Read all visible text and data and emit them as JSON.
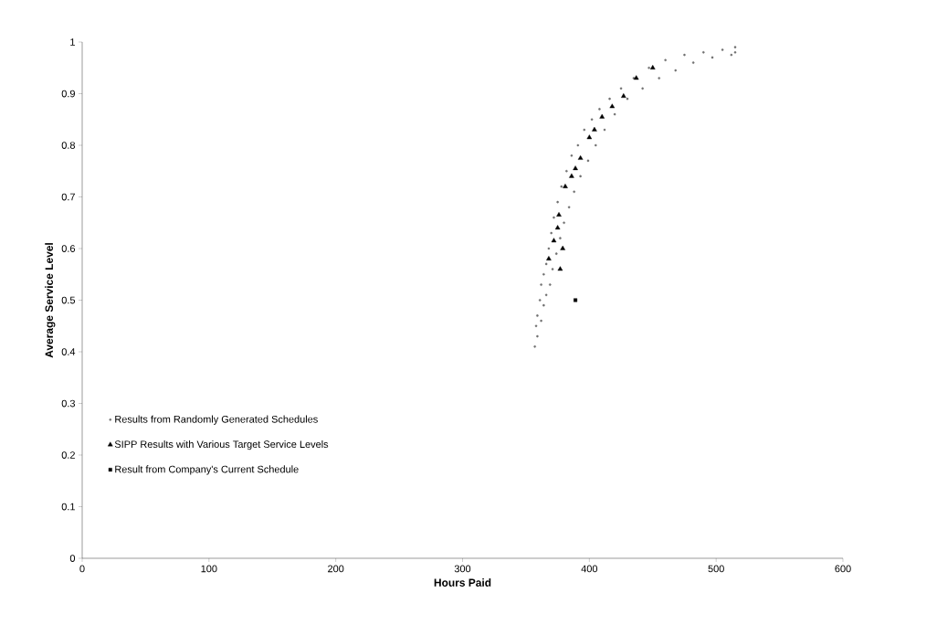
{
  "chart_data": {
    "type": "scatter",
    "xlabel": "Hours Paid",
    "ylabel": "Average Service Level",
    "xlim": [
      0,
      600
    ],
    "ylim": [
      0,
      1
    ],
    "xticks": [
      0,
      100,
      200,
      300,
      400,
      500,
      600
    ],
    "yticks": [
      0,
      0.1,
      0.2,
      0.3,
      0.4,
      0.5,
      0.6,
      0.7,
      0.8,
      0.9,
      1
    ],
    "grid": false,
    "legend": "left",
    "series": [
      {
        "name": "Results from Randomly Generated Schedules",
        "color": "#707070",
        "marker": "circle",
        "x": [
          357,
          358,
          359,
          361,
          362,
          364,
          366,
          368,
          370,
          372,
          375,
          378,
          382,
          386,
          391,
          396,
          402,
          408,
          416,
          425,
          435,
          447,
          460,
          475,
          490,
          505,
          515,
          359,
          362,
          364,
          366,
          369,
          371,
          374,
          377,
          380,
          384,
          388,
          393,
          399,
          405,
          412,
          420,
          430,
          442,
          455,
          468,
          482,
          497,
          512,
          515
        ],
        "values": [
          0.41,
          0.45,
          0.47,
          0.5,
          0.53,
          0.55,
          0.57,
          0.6,
          0.63,
          0.66,
          0.69,
          0.72,
          0.75,
          0.78,
          0.8,
          0.83,
          0.85,
          0.87,
          0.89,
          0.91,
          0.93,
          0.95,
          0.965,
          0.975,
          0.98,
          0.985,
          0.99,
          0.43,
          0.46,
          0.49,
          0.51,
          0.53,
          0.56,
          0.59,
          0.62,
          0.65,
          0.68,
          0.71,
          0.74,
          0.77,
          0.8,
          0.83,
          0.86,
          0.89,
          0.91,
          0.93,
          0.945,
          0.96,
          0.97,
          0.975,
          0.98
        ]
      },
      {
        "name": "SIPP Results with Various Target Service Levels",
        "color": "#000000",
        "marker": "triangle",
        "x": [
          368,
          372,
          375,
          376,
          377,
          379,
          381,
          386,
          389,
          393,
          400,
          404,
          410,
          418,
          427,
          437,
          450
        ],
        "values": [
          0.58,
          0.615,
          0.64,
          0.665,
          0.56,
          0.6,
          0.72,
          0.74,
          0.755,
          0.775,
          0.815,
          0.83,
          0.855,
          0.875,
          0.895,
          0.93,
          0.95
        ]
      },
      {
        "name": "Result from Company's Current Schedule",
        "color": "#000000",
        "marker": "square",
        "x": [
          389
        ],
        "values": [
          0.5
        ]
      }
    ]
  }
}
